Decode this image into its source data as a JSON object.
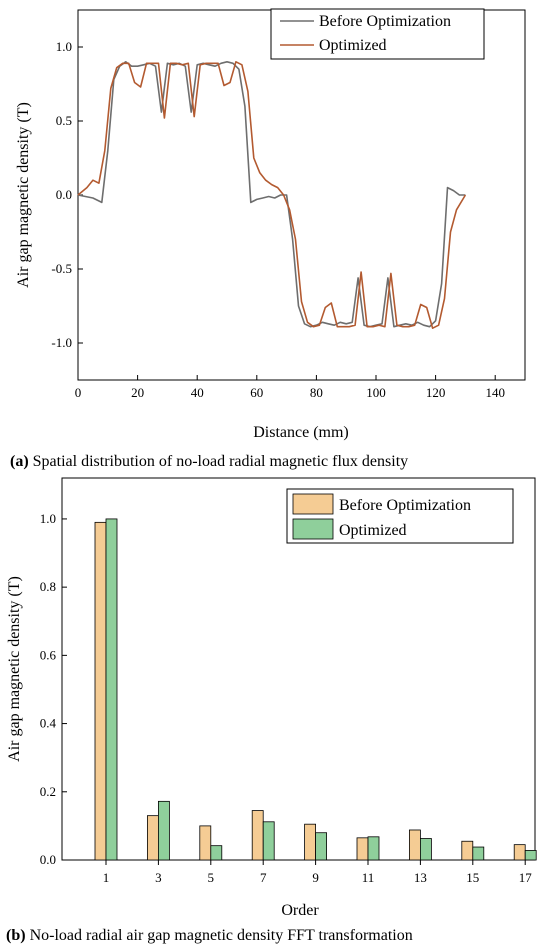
{
  "colors": {
    "before_line": "#6e6e6e",
    "optimized_line": "#b35a30",
    "before_bar": "#f5cc94",
    "optimized_bar": "#8fcf9b",
    "axis": "#000000"
  },
  "chart_data": [
    {
      "type": "line",
      "xlabel": "Distance (mm)",
      "ylabel": "Air gap magnetic density (T)",
      "xlim": [
        0,
        150
      ],
      "ylim": [
        -1.25,
        1.25
      ],
      "xticks": [
        0,
        20,
        40,
        60,
        80,
        100,
        120,
        140
      ],
      "yticks": [
        -1.0,
        -0.5,
        0.0,
        0.5,
        1.0
      ],
      "xtick_labels": [
        "0",
        "20",
        "40",
        "60",
        "80",
        "100",
        "120",
        "140"
      ],
      "ytick_labels": [
        "-1.0",
        "-0.5",
        "0.0",
        "0.5",
        "1.0"
      ],
      "legend": "top-right",
      "grid": false,
      "caption_prefix": "(a)",
      "caption_text": " Spatial distribution of no-load radial magnetic flux density",
      "series": [
        {
          "name": "Before Optimization",
          "x": [
            0,
            5,
            8,
            10,
            12,
            14,
            16,
            18,
            20,
            22,
            24,
            26,
            28,
            30,
            32,
            34,
            36,
            38,
            40,
            42,
            44,
            46,
            48,
            50,
            52,
            54,
            56,
            58,
            60,
            62,
            64,
            66,
            68,
            70,
            72,
            74,
            76,
            78,
            80,
            82,
            84,
            86,
            88,
            90,
            92,
            94,
            96,
            98,
            100,
            102,
            104,
            106,
            108,
            110,
            112,
            114,
            116,
            118,
            120,
            122,
            124,
            126,
            128,
            130
          ],
          "y": [
            0.0,
            -0.02,
            -0.05,
            0.3,
            0.78,
            0.87,
            0.9,
            0.87,
            0.87,
            0.88,
            0.89,
            0.87,
            0.56,
            0.89,
            0.88,
            0.89,
            0.87,
            0.56,
            0.88,
            0.89,
            0.88,
            0.87,
            0.89,
            0.9,
            0.89,
            0.85,
            0.6,
            -0.05,
            -0.03,
            -0.02,
            -0.01,
            -0.02,
            0.0,
            0.0,
            -0.3,
            -0.75,
            -0.87,
            -0.89,
            -0.88,
            -0.86,
            -0.87,
            -0.88,
            -0.86,
            -0.87,
            -0.86,
            -0.56,
            -0.88,
            -0.89,
            -0.88,
            -0.87,
            -0.56,
            -0.89,
            -0.88,
            -0.87,
            -0.88,
            -0.86,
            -0.88,
            -0.89,
            -0.85,
            -0.6,
            0.05,
            0.03,
            0.0,
            0.0
          ]
        },
        {
          "name": "Optimized",
          "x": [
            0,
            3,
            5,
            7,
            9,
            11,
            13,
            15,
            17,
            19,
            21,
            23,
            25,
            27,
            29,
            31,
            33,
            35,
            37,
            39,
            41,
            43,
            45,
            47,
            49,
            51,
            53,
            55,
            57,
            59,
            61,
            63,
            65,
            67,
            69,
            71,
            73,
            75,
            77,
            79,
            81,
            83,
            85,
            87,
            89,
            91,
            93,
            95,
            97,
            99,
            101,
            103,
            105,
            107,
            109,
            111,
            113,
            115,
            117,
            119,
            121,
            123,
            125,
            127,
            130
          ],
          "y": [
            0.0,
            0.05,
            0.1,
            0.08,
            0.3,
            0.72,
            0.86,
            0.89,
            0.89,
            0.76,
            0.73,
            0.89,
            0.89,
            0.89,
            0.52,
            0.89,
            0.89,
            0.88,
            0.89,
            0.53,
            0.88,
            0.89,
            0.89,
            0.89,
            0.74,
            0.76,
            0.9,
            0.88,
            0.7,
            0.25,
            0.15,
            0.1,
            0.07,
            0.05,
            0.0,
            -0.1,
            -0.3,
            -0.72,
            -0.86,
            -0.89,
            -0.88,
            -0.76,
            -0.73,
            -0.89,
            -0.89,
            -0.89,
            -0.88,
            -0.52,
            -0.89,
            -0.89,
            -0.88,
            -0.89,
            -0.53,
            -0.88,
            -0.89,
            -0.89,
            -0.88,
            -0.74,
            -0.76,
            -0.9,
            -0.88,
            -0.7,
            -0.25,
            -0.1,
            0.0
          ]
        }
      ]
    },
    {
      "type": "bar",
      "xlabel": "Order",
      "ylabel": "Air gap magnetic density (T)",
      "ylim": [
        0,
        1.12
      ],
      "yticks": [
        0.0,
        0.2,
        0.4,
        0.6,
        0.8,
        1.0
      ],
      "ytick_labels": [
        "0.0",
        "0.2",
        "0.4",
        "0.6",
        "0.8",
        "1.0"
      ],
      "legend": "top-right",
      "grid": false,
      "caption_prefix": "(b)",
      "caption_text": " No-load radial air gap magnetic density FFT transformation",
      "categories": [
        "1",
        "3",
        "5",
        "7",
        "9",
        "11",
        "13",
        "15",
        "17"
      ],
      "series": [
        {
          "name": "Before Optimization",
          "values": [
            0.99,
            0.13,
            0.1,
            0.145,
            0.105,
            0.065,
            0.088,
            0.055,
            0.045
          ]
        },
        {
          "name": "Optimized",
          "values": [
            1.0,
            0.172,
            0.042,
            0.112,
            0.08,
            0.068,
            0.063,
            0.038,
            0.028
          ]
        }
      ]
    }
  ]
}
